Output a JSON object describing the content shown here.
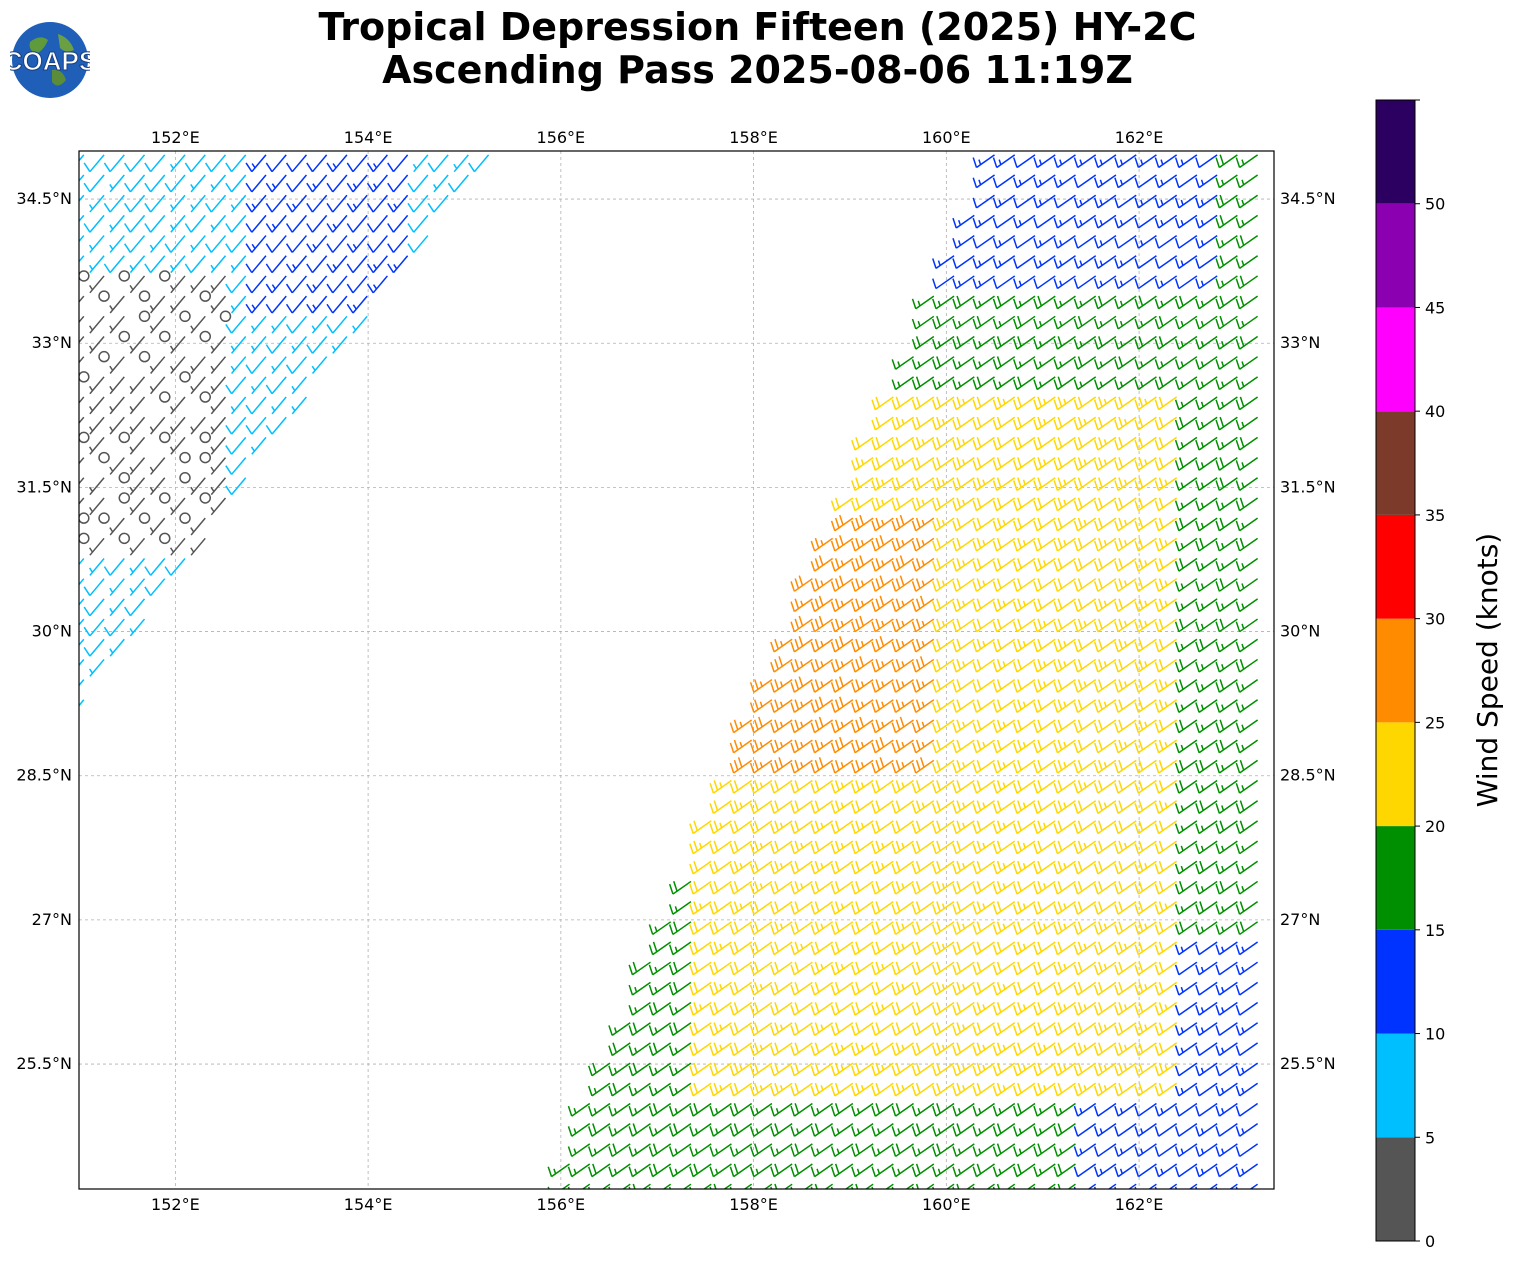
{
  "title": {
    "line1": "Tropical Depression Fifteen (2025) HY-2C",
    "line2": "Ascending Pass 2025-08-06 11:19Z"
  },
  "logo": {
    "text": "COAPS",
    "icon": "globe-icon"
  },
  "map": {
    "lon_range": [
      151.0,
      163.4
    ],
    "lat_range": [
      24.2,
      35.0
    ],
    "lon_ticks": [
      {
        "value": 152,
        "label": "152°E"
      },
      {
        "value": 154,
        "label": "154°E"
      },
      {
        "value": 156,
        "label": "156°E"
      },
      {
        "value": 158,
        "label": "158°E"
      },
      {
        "value": 160,
        "label": "160°E"
      },
      {
        "value": 162,
        "label": "162°E"
      }
    ],
    "lat_ticks": [
      {
        "value": 34.5,
        "label": "34.5°N"
      },
      {
        "value": 33,
        "label": "33°N"
      },
      {
        "value": 31.5,
        "label": "31.5°N"
      },
      {
        "value": 30,
        "label": "30°N"
      },
      {
        "value": 28.5,
        "label": "28.5°N"
      },
      {
        "value": 27,
        "label": "27°N"
      },
      {
        "value": 25.5,
        "label": "25.5°N"
      }
    ],
    "grid": "dashed gray"
  },
  "colorbar": {
    "label": "Wind Speed (knots)",
    "ticks": [
      "0",
      "5",
      "10",
      "15",
      "20",
      "25",
      "30",
      "35",
      "40",
      "45",
      "50"
    ],
    "bins": [
      {
        "min": 0,
        "max": 5,
        "color": "#555555"
      },
      {
        "min": 5,
        "max": 10,
        "color": "#00bfff"
      },
      {
        "min": 10,
        "max": 15,
        "color": "#0033ff"
      },
      {
        "min": 15,
        "max": 20,
        "color": "#008f00"
      },
      {
        "min": 20,
        "max": 25,
        "color": "#ffd700"
      },
      {
        "min": 25,
        "max": 30,
        "color": "#ff8c00"
      },
      {
        "min": 30,
        "max": 35,
        "color": "#ff0000"
      },
      {
        "min": 35,
        "max": 40,
        "color": "#7b3a2a"
      },
      {
        "min": 40,
        "max": 45,
        "color": "#ff00ff"
      },
      {
        "min": 45,
        "max": 50,
        "color": "#8b00b0"
      },
      {
        "min": 50,
        "max": 55,
        "color": "#2b0060"
      }
    ]
  },
  "passes": [
    {
      "name": "west-swath",
      "edge_a": [
        [
          151.0,
          35.0
        ],
        [
          155.3,
          35.0
        ]
      ],
      "edge_b": [
        [
          151.0,
          29.2
        ],
        [
          155.3,
          35.0
        ]
      ],
      "wind_from_deg": 220,
      "speed_regions": [
        {
          "lon": [
            151.0,
            152.6
          ],
          "lat": [
            30.9,
            33.8
          ],
          "speed": 3
        },
        {
          "lon": [
            152.8,
            154.6
          ],
          "lat": [
            33.3,
            35.0
          ],
          "speed": 12
        },
        {
          "lon": [
            151.0,
            155.3
          ],
          "lat": [
            29.2,
            35.0
          ],
          "speed": 8
        }
      ]
    },
    {
      "name": "east-swath",
      "edge_a": [
        [
          155.9,
          24.2
        ],
        [
          160.5,
          35.0
        ]
      ],
      "edge_b": [
        [
          163.4,
          24.2
        ],
        [
          163.4,
          35.0
        ]
      ],
      "wind_from_deg": 235,
      "speed_regions": [
        {
          "lon": [
            157.6,
            159.9
          ],
          "lat": [
            28.6,
            31.3
          ],
          "speed": 27
        },
        {
          "lon": [
            157.4,
            162.4
          ],
          "lat": [
            25.2,
            32.5
          ],
          "speed": 22
        },
        {
          "lon": [
            161.4,
            163.4
          ],
          "lat": [
            24.2,
            26.8
          ],
          "speed": 13
        },
        {
          "lon": [
            160.0,
            163.0
          ],
          "lat": [
            33.7,
            35.0
          ],
          "speed": 13
        },
        {
          "lon": [
            155.9,
            163.4
          ],
          "lat": [
            24.2,
            35.0
          ],
          "speed": 17
        }
      ]
    }
  ]
}
